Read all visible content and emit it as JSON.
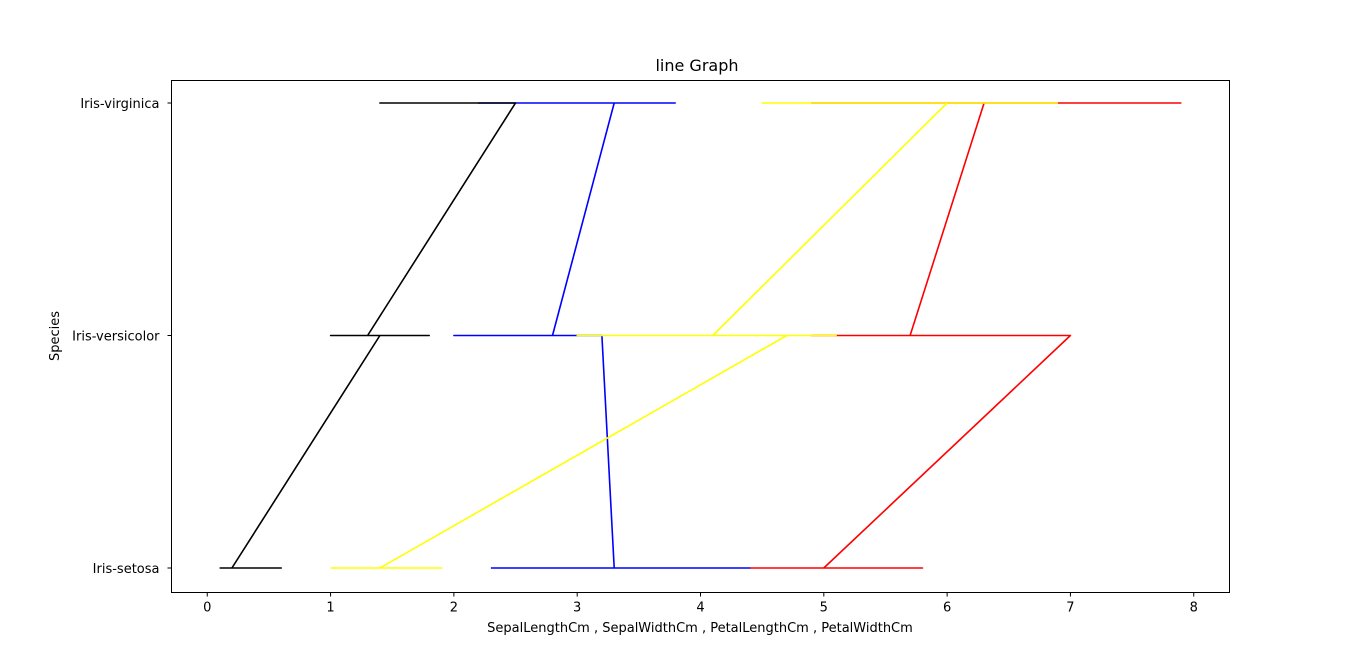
{
  "chart_data": {
    "type": "line",
    "title": "line Graph",
    "xlabel": "SepalLengthCm , SepalWidthCm , PetalLengthCm , PetalWidthCm",
    "ylabel": "Species",
    "categories": [
      "Iris-setosa",
      "Iris-versicolor",
      "Iris-virginica"
    ],
    "xlim": [
      -0.29,
      8.29
    ],
    "xticks": [
      0,
      1,
      2,
      3,
      4,
      5,
      6,
      7,
      8
    ],
    "grid": false,
    "series": [
      {
        "color": "#ff0000",
        "points": [
          [
            4.4,
            "Iris-setosa"
          ],
          [
            5.8,
            "Iris-setosa"
          ],
          [
            5.0,
            "Iris-setosa"
          ],
          [
            7.0,
            "Iris-versicolor"
          ],
          [
            4.9,
            "Iris-versicolor"
          ],
          [
            5.7,
            "Iris-versicolor"
          ],
          [
            6.3,
            "Iris-virginica"
          ],
          [
            4.9,
            "Iris-virginica"
          ],
          [
            7.9,
            "Iris-virginica"
          ]
        ]
      },
      {
        "color": "#0000ff",
        "points": [
          [
            2.3,
            "Iris-setosa"
          ],
          [
            4.4,
            "Iris-setosa"
          ],
          [
            3.3,
            "Iris-setosa"
          ],
          [
            3.2,
            "Iris-versicolor"
          ],
          [
            2.0,
            "Iris-versicolor"
          ],
          [
            2.8,
            "Iris-versicolor"
          ],
          [
            3.3,
            "Iris-virginica"
          ],
          [
            2.2,
            "Iris-virginica"
          ],
          [
            3.8,
            "Iris-virginica"
          ]
        ]
      },
      {
        "color": "#ffff00",
        "points": [
          [
            1.0,
            "Iris-setosa"
          ],
          [
            1.9,
            "Iris-setosa"
          ],
          [
            1.4,
            "Iris-setosa"
          ],
          [
            4.7,
            "Iris-versicolor"
          ],
          [
            3.0,
            "Iris-versicolor"
          ],
          [
            5.1,
            "Iris-versicolor"
          ],
          [
            4.1,
            "Iris-versicolor"
          ],
          [
            6.0,
            "Iris-virginica"
          ],
          [
            4.5,
            "Iris-virginica"
          ],
          [
            6.9,
            "Iris-virginica"
          ]
        ]
      },
      {
        "color": "#000000",
        "points": [
          [
            0.1,
            "Iris-setosa"
          ],
          [
            0.6,
            "Iris-setosa"
          ],
          [
            0.2,
            "Iris-setosa"
          ],
          [
            1.4,
            "Iris-versicolor"
          ],
          [
            1.0,
            "Iris-versicolor"
          ],
          [
            1.8,
            "Iris-versicolor"
          ],
          [
            1.3,
            "Iris-versicolor"
          ],
          [
            2.5,
            "Iris-virginica"
          ],
          [
            1.4,
            "Iris-virginica"
          ],
          [
            2.4,
            "Iris-virginica"
          ]
        ]
      }
    ]
  }
}
